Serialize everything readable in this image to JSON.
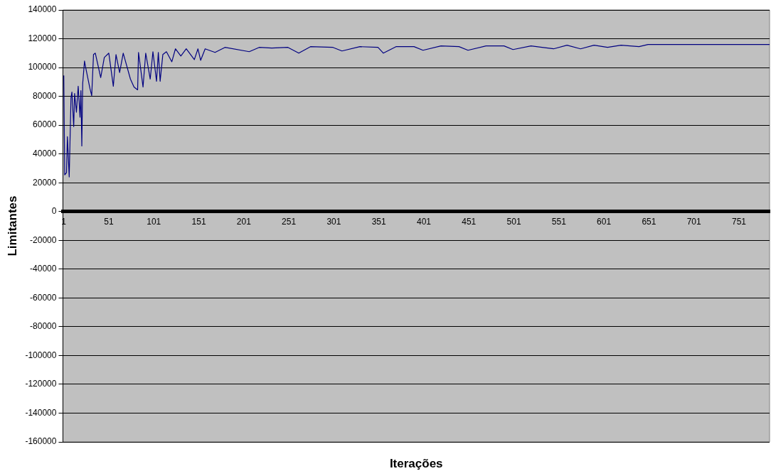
{
  "chart_data": {
    "type": "line",
    "xlabel": "Iterações",
    "ylabel": "Limitantes",
    "xlim": [
      0,
      785
    ],
    "xticks": [
      1,
      51,
      101,
      151,
      201,
      251,
      301,
      351,
      401,
      451,
      501,
      551,
      601,
      651,
      701,
      751
    ],
    "ylim": [
      -160000,
      140000
    ],
    "yticks": [
      -160000,
      -140000,
      -120000,
      -100000,
      -80000,
      -60000,
      -40000,
      -20000,
      0,
      20000,
      40000,
      60000,
      80000,
      100000,
      120000,
      140000
    ],
    "grid": "y",
    "legend": false,
    "marker": "none",
    "line_style": "solid",
    "series": [
      {
        "color": "#000080",
        "x": [
          1,
          2,
          4,
          5,
          7,
          9,
          10,
          12,
          13,
          15,
          17,
          19,
          20,
          21,
          22,
          24,
          25,
          30,
          32,
          34,
          36,
          42,
          46,
          51,
          56,
          59,
          63,
          67,
          75,
          79,
          83,
          84,
          89,
          92,
          97,
          100,
          104,
          106,
          108,
          111,
          115,
          121,
          125,
          131,
          137,
          146,
          150,
          153,
          158,
          169,
          180,
          207,
          218,
          232,
          250,
          262,
          275,
          300,
          310,
          330,
          350,
          356,
          370,
          390,
          400,
          420,
          440,
          450,
          470,
          490,
          500,
          520,
          545,
          560,
          575,
          590,
          605,
          620,
          640,
          650,
          700,
          750,
          785
        ],
        "values": [
          94500,
          25500,
          27000,
          52000,
          24000,
          79000,
          83000,
          59000,
          82000,
          69000,
          87000,
          65500,
          84000,
          45500,
          89000,
          104500,
          101000,
          85500,
          80500,
          109000,
          110000,
          93000,
          107000,
          110000,
          87000,
          109000,
          96500,
          110000,
          92000,
          86500,
          84500,
          110500,
          86500,
          110000,
          92000,
          111000,
          90500,
          110500,
          90500,
          109000,
          111000,
          104000,
          113000,
          108000,
          113000,
          105500,
          113000,
          105000,
          113000,
          110500,
          114000,
          111000,
          114000,
          113500,
          114000,
          110000,
          114500,
          114000,
          111500,
          114500,
          114000,
          110000,
          114500,
          114500,
          112000,
          115000,
          114500,
          112000,
          115000,
          115000,
          112500,
          115000,
          113000,
          115500,
          113000,
          115500,
          114000,
          115500,
          114500,
          116000,
          116000,
          116000,
          116000
        ]
      }
    ]
  }
}
